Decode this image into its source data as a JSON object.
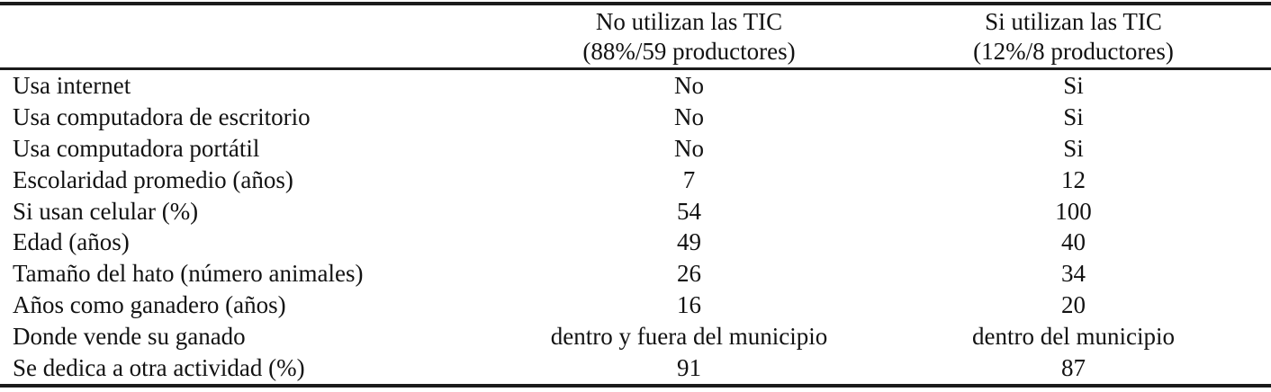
{
  "table": {
    "header": {
      "col_no_tic": {
        "line1": "No utilizan las TIC",
        "line2": "(88%/59 productores)"
      },
      "col_si_tic": {
        "line1": "Si utilizan las TIC",
        "line2": "(12%/8 productores)"
      }
    },
    "rows": [
      {
        "label": "Usa internet",
        "no_tic": "No",
        "si_tic": "Si"
      },
      {
        "label": "Usa computadora de escritorio",
        "no_tic": "No",
        "si_tic": "Si"
      },
      {
        "label": "Usa computadora portátil",
        "no_tic": "No",
        "si_tic": "Si"
      },
      {
        "label": "Escolaridad promedio (años)",
        "no_tic": "7",
        "si_tic": "12"
      },
      {
        "label": "Si usan celular (%)",
        "no_tic": "54",
        "si_tic": "100"
      },
      {
        "label": "Edad (años)",
        "no_tic": "49",
        "si_tic": "40"
      },
      {
        "label": "Tamaño del hato (número animales)",
        "no_tic": "26",
        "si_tic": "34"
      },
      {
        "label": "Años como ganadero (años)",
        "no_tic": "16",
        "si_tic": "20"
      },
      {
        "label": "Donde vende su ganado",
        "no_tic": "dentro y fuera del municipio",
        "si_tic": "dentro del municipio"
      },
      {
        "label": "Se dedica a otra actividad (%)",
        "no_tic": "91",
        "si_tic": "87"
      }
    ],
    "colors": {
      "text": "#121212",
      "rule": "#1b1b1b",
      "background": "#ffffff"
    }
  }
}
